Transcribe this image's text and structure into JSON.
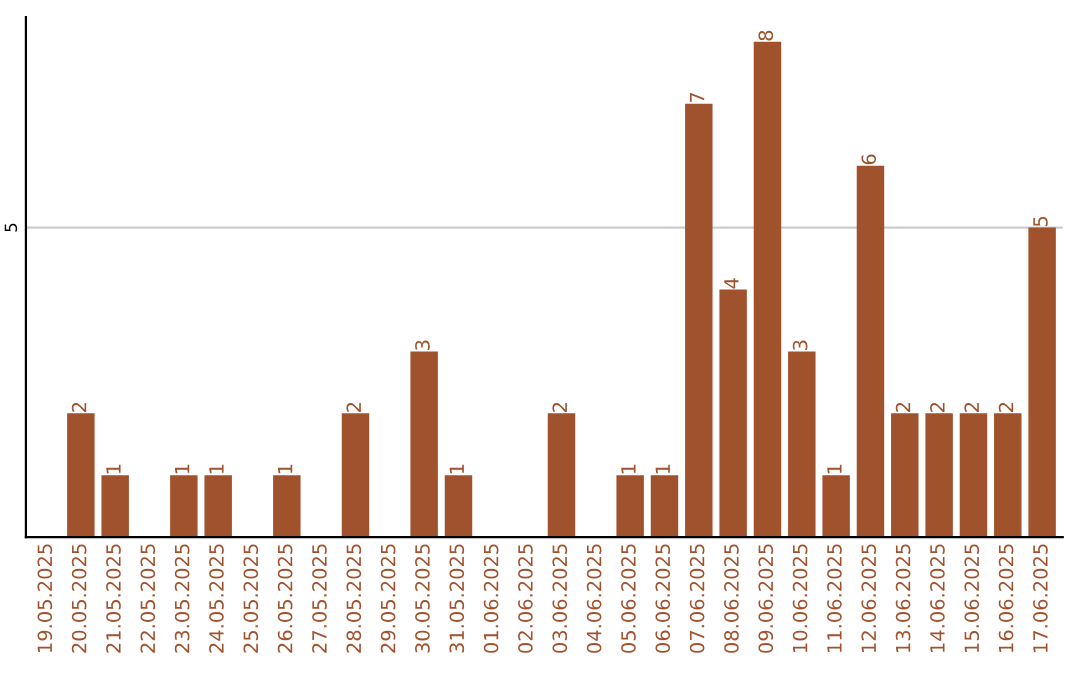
{
  "chart_data": {
    "type": "bar",
    "categories": [
      "19.05.2025",
      "20.05.2025",
      "21.05.2025",
      "22.05.2025",
      "23.05.2025",
      "24.05.2025",
      "25.05.2025",
      "26.05.2025",
      "27.05.2025",
      "28.05.2025",
      "29.05.2025",
      "30.05.2025",
      "31.05.2025",
      "01.06.2025",
      "02.06.2025",
      "03.06.2025",
      "04.06.2025",
      "05.06.2025",
      "06.06.2025",
      "07.06.2025",
      "08.06.2025",
      "09.06.2025",
      "10.06.2025",
      "11.06.2025",
      "12.06.2025",
      "13.06.2025",
      "14.06.2025",
      "15.06.2025",
      "16.06.2025",
      "17.06.2025"
    ],
    "values": [
      0,
      2,
      1,
      0,
      1,
      1,
      0,
      1,
      0,
      2,
      0,
      3,
      1,
      0,
      0,
      2,
      0,
      1,
      1,
      7,
      4,
      8,
      3,
      1,
      6,
      2,
      2,
      2,
      2,
      5
    ],
    "value_labels": [
      null,
      "2",
      "1",
      null,
      "1",
      "1",
      null,
      "1",
      null,
      "2",
      null,
      "3",
      "1",
      null,
      null,
      "2",
      null,
      "1",
      "1",
      "7",
      "4",
      "8",
      "3",
      "1",
      "6",
      "2",
      "2",
      "2",
      "2",
      "5"
    ],
    "color": "#a0522d",
    "ylim": [
      0,
      8.4
    ],
    "yticks": [
      5
    ],
    "grid": "y"
  }
}
